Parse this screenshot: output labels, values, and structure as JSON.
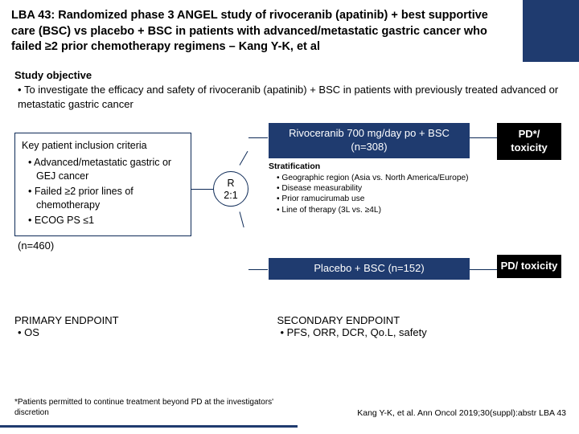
{
  "colors": {
    "brand_blue": "#1f3b6f",
    "black": "#000000",
    "white": "#ffffff"
  },
  "title": "LBA 43: Randomized phase 3 ANGEL study of rivoceranib (apatinib) + best supportive care (BSC) vs placebo + BSC in patients with advanced/metastatic gastric cancer who failed ≥2 prior chemotherapy regimens – Kang Y-K, et al",
  "objective": {
    "heading": "Study objective",
    "bullets": [
      "To investigate the efficacy and safety of rivoceranib (apatinib) + BSC in patients with previously treated advanced or metastatic gastric cancer"
    ]
  },
  "inclusion": {
    "heading": "Key patient inclusion criteria",
    "bullets": [
      "Advanced/metastatic gastric or GEJ cancer",
      "Failed ≥2 prior lines of chemotherapy",
      "ECOG PS ≤1"
    ],
    "n_total": "(n=460)"
  },
  "randomization": {
    "line1": "R",
    "line2": "2:1"
  },
  "arms": {
    "arm1": "Rivoceranib 700 mg/day po + BSC (n=308)",
    "arm2": "Placebo + BSC (n=152)"
  },
  "stratification": {
    "heading": "Stratification",
    "bullets": [
      "Geographic region (Asia vs. North America/Europe)",
      "Disease measurability",
      "Prior ramucirumab use",
      "Line of therapy (3L vs. ≥4L)"
    ]
  },
  "outcomes": {
    "out1": "PD*/ toxicity",
    "out2": "PD/ toxicity"
  },
  "endpoints": {
    "primary_heading": "PRIMARY ENDPOINT",
    "primary": [
      "OS"
    ],
    "secondary_heading": "SECONDARY ENDPOINT",
    "secondary": [
      "PFS, ORR, DCR, Qo.L, safety"
    ]
  },
  "footnote": "*Patients permitted to continue treatment beyond PD at the investigators' discretion",
  "citation": "Kang Y-K, et al. Ann Oncol 2019;30(suppl):abstr LBA 43"
}
